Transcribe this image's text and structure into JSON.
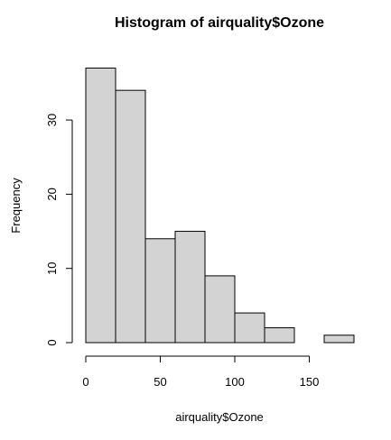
{
  "chart_data": {
    "type": "bar",
    "title": "Histogram of airquality$Ozone",
    "xlabel": "airquality$Ozone",
    "ylabel": "Frequency",
    "bins": [
      {
        "start": 0,
        "end": 20,
        "count": 37
      },
      {
        "start": 20,
        "end": 40,
        "count": 34
      },
      {
        "start": 40,
        "end": 60,
        "count": 14
      },
      {
        "start": 60,
        "end": 80,
        "count": 15
      },
      {
        "start": 80,
        "end": 100,
        "count": 9
      },
      {
        "start": 100,
        "end": 120,
        "count": 4
      },
      {
        "start": 120,
        "end": 140,
        "count": 2
      },
      {
        "start": 140,
        "end": 160,
        "count": 0
      },
      {
        "start": 160,
        "end": 180,
        "count": 1
      }
    ],
    "x_ticks": [
      0,
      50,
      100,
      150
    ],
    "y_ticks": [
      0,
      10,
      20,
      30
    ],
    "xlim": [
      0,
      180
    ],
    "ylim": [
      0,
      37
    ],
    "colors": {
      "bar_fill": "#d3d3d3",
      "bar_stroke": "#000000",
      "axis": "#000000"
    },
    "grid": false,
    "legend": "none"
  }
}
